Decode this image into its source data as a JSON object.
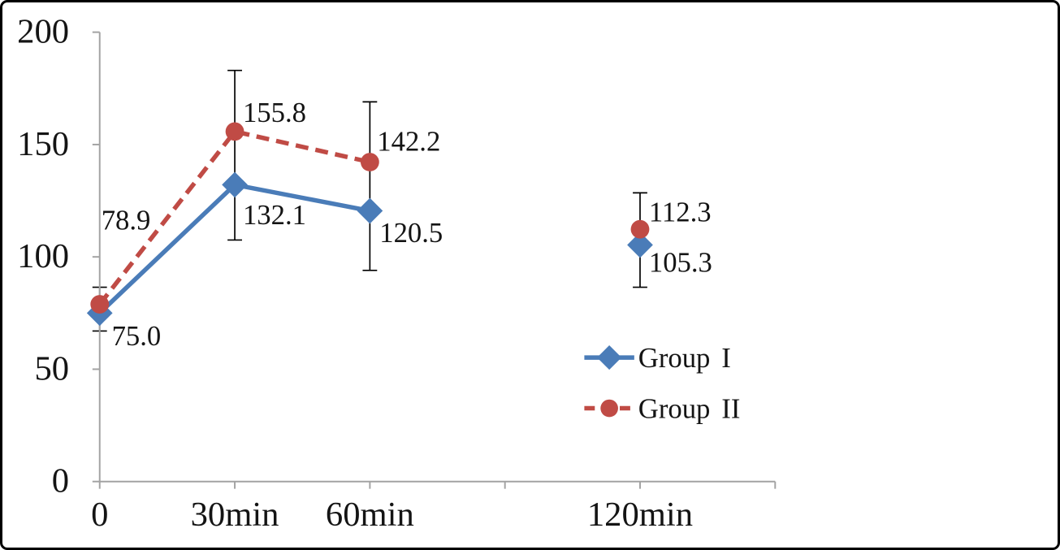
{
  "frame": {
    "background": "#ffffff",
    "border_color": "#000000"
  },
  "chart_data": {
    "type": "line",
    "title": "",
    "xlabel": "",
    "ylabel": "",
    "grid": false,
    "categories": [
      "0",
      "30min",
      "60min",
      "120min"
    ],
    "series": [
      {
        "name": "Group I",
        "legend_prefix": "Group",
        "legend_numeral": "I",
        "color": "#4A7CB8",
        "marker": "diamond",
        "line_style": "solid",
        "values": [
          75.0,
          132.1,
          120.5,
          105.3
        ],
        "data_labels": [
          "75.0",
          "132.1",
          "120.5",
          "105.3"
        ],
        "label_offsets": [
          [
            15,
            40
          ],
          [
            10,
            49
          ],
          [
            12,
            39
          ],
          [
            11,
            33
          ]
        ]
      },
      {
        "name": "Group II",
        "legend_prefix": "Group",
        "legend_numeral": "II",
        "color": "#C04B45",
        "marker": "circle",
        "line_style": "dashed",
        "values": [
          78.9,
          155.8,
          142.2,
          112.3
        ],
        "data_labels": [
          "78.9",
          "155.8",
          "142.2",
          "112.3"
        ],
        "label_offsets": [
          [
            2,
            -93
          ],
          [
            10,
            -12
          ],
          [
            9,
            -14
          ],
          [
            11,
            -10
          ]
        ]
      }
    ],
    "connected_point_indices": [
      0,
      1,
      2
    ],
    "isolated_point_index": 3,
    "error_bars": [
      {
        "category": "0",
        "upper": 86.5,
        "lower": 67.0
      },
      {
        "category": "30min",
        "upper": 183.0,
        "lower": 107.5
      },
      {
        "category": "60min",
        "upper": 169.0,
        "lower": 94.0
      },
      {
        "category": "120min",
        "upper": 128.5,
        "lower": 86.5
      }
    ],
    "y_axis": {
      "min": 0,
      "max": 200,
      "tick_labels": [
        "0",
        "50",
        "100",
        "150",
        "200"
      ]
    },
    "x_axis": {
      "tick_labels": [
        "0",
        "30min",
        "60min",
        "120min"
      ],
      "slot_count": 6,
      "label_slots": [
        0,
        1,
        2,
        4
      ]
    },
    "legend": {
      "position": "right-middle",
      "entries": [
        "Group I",
        "Group II"
      ]
    },
    "axis_color": "#a3a3a3",
    "error_bar_color": "#000000",
    "text_color": "#141414"
  }
}
